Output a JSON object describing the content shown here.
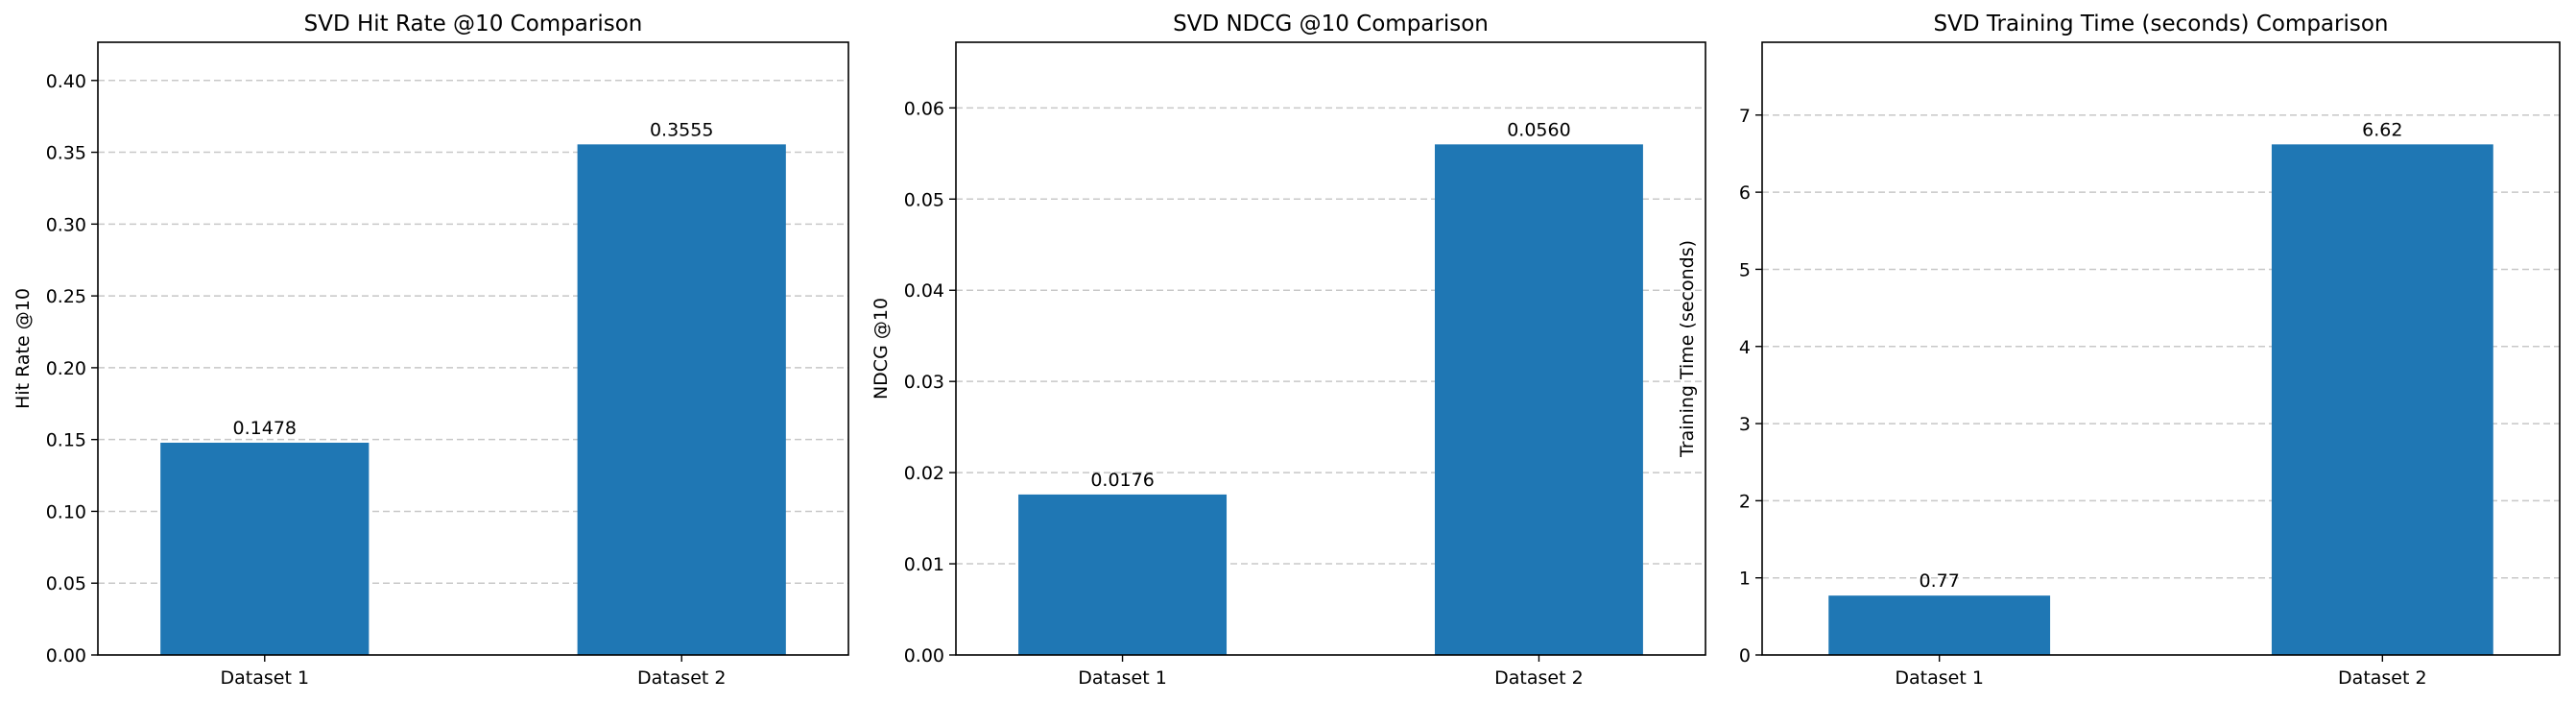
{
  "chart_data": [
    {
      "type": "bar",
      "title": "SVD Hit Rate @10 Comparison",
      "xlabel": "",
      "ylabel": "Hit Rate @10",
      "categories": [
        "Dataset 1",
        "Dataset 2"
      ],
      "values": [
        0.1478,
        0.3555
      ],
      "value_labels": [
        "0.1478",
        "0.3555"
      ],
      "ylim": [
        0,
        0.4266
      ],
      "yticks": [
        0.0,
        0.05,
        0.1,
        0.15,
        0.2,
        0.25,
        0.3,
        0.35,
        0.4
      ],
      "ytick_labels": [
        "0.00",
        "0.05",
        "0.10",
        "0.15",
        "0.20",
        "0.25",
        "0.30",
        "0.35",
        "0.40"
      ],
      "grid": "y-dashed",
      "bar_color": "#1f77b4"
    },
    {
      "type": "bar",
      "title": "SVD NDCG @10 Comparison",
      "xlabel": "",
      "ylabel": "NDCG @10",
      "categories": [
        "Dataset 1",
        "Dataset 2"
      ],
      "values": [
        0.0176,
        0.056
      ],
      "value_labels": [
        "0.0176",
        "0.0560"
      ],
      "ylim": [
        0,
        0.0672
      ],
      "yticks": [
        0.0,
        0.01,
        0.02,
        0.03,
        0.04,
        0.05,
        0.06
      ],
      "ytick_labels": [
        "0.00",
        "0.01",
        "0.02",
        "0.03",
        "0.04",
        "0.05",
        "0.06"
      ],
      "grid": "y-dashed",
      "bar_color": "#1f77b4"
    },
    {
      "type": "bar",
      "title": "SVD Training Time (seconds) Comparison",
      "xlabel": "",
      "ylabel": "Training Time (seconds)",
      "categories": [
        "Dataset 1",
        "Dataset 2"
      ],
      "values": [
        0.77,
        6.62
      ],
      "value_labels": [
        "0.77",
        "6.62"
      ],
      "ylim": [
        0,
        7.944
      ],
      "yticks": [
        0,
        1,
        2,
        3,
        4,
        5,
        6,
        7
      ],
      "ytick_labels": [
        "0",
        "1",
        "2",
        "3",
        "4",
        "5",
        "6",
        "7"
      ],
      "grid": "y-dashed",
      "bar_color": "#1f77b4"
    }
  ]
}
